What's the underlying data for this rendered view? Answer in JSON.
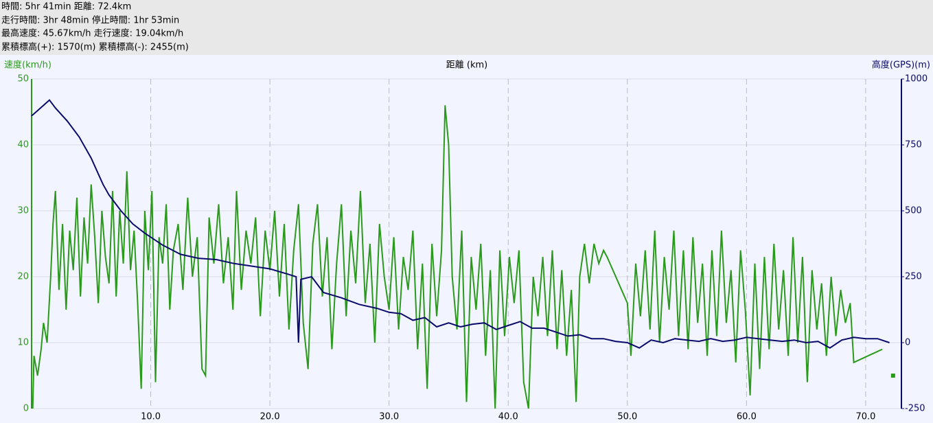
{
  "header_lines": [
    "時間: 5hr 41min 距離: 72.4km",
    "走行時間: 3hr 48min 停止時間: 1hr 53min",
    "最高速度: 45.67km/h 走行速度: 19.04km/h",
    "累積標高(+): 1570(m) 累積標高(-): 2455(m)"
  ],
  "chart_data": {
    "type": "line",
    "ylabel": "速度(km/h)",
    "xlabel": "距離 (km)",
    "y2label": "高度(GPS)(m)",
    "xlim": [
      0,
      73
    ],
    "ylim": [
      0,
      50
    ],
    "y2lim": [
      -250,
      1000
    ],
    "xticks": [
      {
        "value": 10,
        "label": "10.0"
      },
      {
        "value": 20,
        "label": "20.0"
      },
      {
        "value": 30,
        "label": "30.0"
      },
      {
        "value": 40,
        "label": "40.0"
      },
      {
        "value": 50,
        "label": "50.0"
      },
      {
        "value": 60,
        "label": "60.0"
      },
      {
        "value": 70,
        "label": "70.0"
      }
    ],
    "yticks": [
      0,
      10,
      20,
      30,
      40,
      50
    ],
    "y2ticks": [
      -250,
      0,
      250,
      500,
      750,
      1000
    ],
    "grid": true,
    "series": [
      {
        "color": "#2a9a1a",
        "axis": "y",
        "x": [
          0.1,
          0.2,
          0.5,
          0.8,
          1.0,
          1.3,
          1.6,
          1.8,
          2.0,
          2.3,
          2.6,
          2.9,
          3.2,
          3.5,
          3.8,
          4.1,
          4.4,
          4.7,
          5.0,
          5.3,
          5.6,
          5.9,
          6.2,
          6.5,
          6.8,
          7.1,
          7.4,
          7.7,
          8.0,
          8.3,
          8.6,
          8.9,
          9.2,
          9.5,
          9.8,
          10.1,
          10.4,
          10.7,
          11.0,
          11.3,
          11.6,
          11.9,
          12.3,
          12.7,
          13.1,
          13.5,
          13.9,
          14.3,
          14.6,
          14.9,
          15.3,
          15.7,
          16.1,
          16.5,
          16.9,
          17.2,
          17.6,
          18.0,
          18.4,
          18.8,
          19.2,
          19.6,
          20.0,
          20.4,
          20.8,
          21.2,
          21.6,
          22.0,
          22.4,
          22.8,
          23.2,
          23.6,
          24.0,
          24.4,
          24.8,
          25.2,
          25.6,
          26.0,
          26.4,
          26.8,
          27.2,
          27.6,
          28.0,
          28.4,
          28.8,
          29.2,
          29.6,
          30.0,
          30.4,
          30.8,
          31.2,
          31.6,
          32.0,
          32.4,
          32.8,
          33.2,
          33.6,
          34.0,
          34.4,
          34.7,
          35.0,
          35.3,
          35.7,
          36.1,
          36.5,
          36.9,
          37.3,
          37.7,
          38.1,
          38.5,
          38.9,
          39.3,
          39.7,
          40.1,
          40.5,
          40.9,
          41.3,
          41.7,
          42.1,
          42.5,
          42.9,
          43.3,
          43.7,
          44.1,
          44.5,
          44.9,
          45.3,
          45.7,
          46.0,
          46.4,
          46.8,
          47.2,
          47.6,
          48.0,
          48.3,
          50.0,
          50.3,
          50.7,
          51.1,
          51.5,
          51.9,
          52.3,
          52.7,
          53.1,
          53.5,
          53.9,
          54.3,
          54.7,
          55.1,
          55.5,
          55.9,
          56.3,
          56.7,
          57.1,
          57.5,
          57.9,
          58.3,
          58.7,
          59.1,
          59.5,
          59.9,
          60.3,
          60.7,
          61.1,
          61.5,
          61.9,
          62.3,
          62.7,
          63.1,
          63.5,
          63.9,
          64.3,
          64.7,
          65.1,
          65.5,
          65.9,
          66.3,
          66.7,
          67.1,
          67.5,
          67.9,
          68.3,
          68.7,
          69.0,
          71.4,
          72.0,
          72.3
        ],
        "values": [
          0,
          8,
          5,
          9,
          13,
          10,
          20,
          28,
          33,
          18,
          28,
          15,
          27,
          21,
          32,
          17,
          29,
          22,
          34,
          26,
          16,
          30,
          23,
          19,
          33,
          17,
          30,
          22,
          36,
          21,
          27,
          16,
          3,
          30,
          21,
          33,
          4,
          26,
          22,
          31,
          15,
          24,
          28,
          18,
          32,
          20,
          26,
          6,
          5,
          29,
          22,
          31,
          19,
          26,
          15,
          33,
          18,
          27,
          22,
          29,
          14,
          27,
          21,
          30,
          17,
          28,
          12,
          24,
          31,
          13,
          6,
          25,
          31,
          17,
          26,
          9,
          22,
          31,
          14,
          27,
          19,
          33,
          16,
          25,
          10,
          28,
          20,
          15,
          26,
          12,
          23,
          18,
          27,
          9,
          22,
          3,
          25,
          14,
          24,
          46,
          40,
          20,
          12,
          27,
          1,
          23,
          15,
          25,
          8,
          21,
          0,
          24,
          11,
          23,
          16,
          24,
          4,
          0,
          20,
          14,
          23,
          11,
          24,
          9,
          21,
          8,
          18,
          1,
          20,
          25,
          19,
          25,
          22,
          24,
          23,
          16,
          8,
          22,
          14,
          24,
          12,
          27,
          10,
          23,
          15,
          27,
          11,
          24,
          9,
          26,
          13,
          22,
          8,
          24,
          11,
          27,
          13,
          21,
          7,
          24,
          15,
          2,
          22,
          6,
          23,
          9,
          25,
          12,
          21,
          8,
          26,
          10,
          23,
          4,
          21,
          12,
          19,
          8,
          20,
          11,
          18,
          13,
          16,
          7,
          9,
          null,
          5
        ]
      },
      {
        "color": "#0a0a6a",
        "axis": "y2",
        "x": [
          0,
          0.5,
          1.0,
          1.5,
          2.0,
          3.0,
          4.0,
          5.0,
          6.0,
          6.5,
          7.5,
          8.5,
          9.5,
          11,
          12.5,
          14,
          15.5,
          17,
          18.5,
          20,
          21.5,
          22.2,
          22.4,
          22.6,
          23.5,
          24.5,
          26,
          27.5,
          29,
          30,
          31,
          32,
          33,
          34,
          35,
          36,
          37,
          38,
          39,
          40,
          41,
          42,
          43,
          44,
          45,
          46,
          47,
          48,
          49,
          50,
          51,
          52,
          53,
          54,
          55,
          56,
          57,
          58,
          59,
          60,
          61,
          62,
          63,
          64,
          65,
          66,
          67,
          68,
          69,
          70,
          71,
          72
        ],
        "values": [
          860,
          880,
          900,
          920,
          890,
          840,
          780,
          700,
          600,
          560,
          500,
          450,
          415,
          370,
          335,
          320,
          315,
          300,
          290,
          280,
          260,
          250,
          0,
          240,
          250,
          190,
          170,
          145,
          130,
          115,
          110,
          85,
          95,
          60,
          75,
          60,
          70,
          75,
          50,
          65,
          80,
          55,
          55,
          40,
          25,
          30,
          15,
          15,
          5,
          0,
          -20,
          10,
          0,
          15,
          10,
          5,
          15,
          5,
          10,
          20,
          15,
          10,
          5,
          10,
          0,
          5,
          -20,
          10,
          20,
          15,
          15,
          0
        ]
      }
    ]
  }
}
